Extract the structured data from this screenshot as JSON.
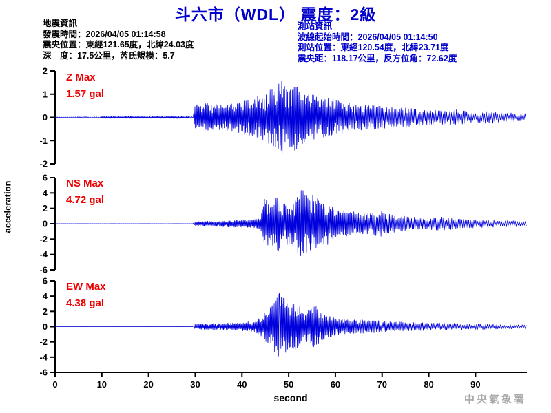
{
  "title": "斗六市（WDL） 震度：2級",
  "earthquake_info": {
    "heading": "地震資訊",
    "lines": [
      "發震時間：2026/04/05 01:14:58",
      "震央位置：東經121.65度，北緯24.03度",
      "深　度：17.5公里，芮氏規模：5.7"
    ]
  },
  "station_info": {
    "heading": "測站資訊",
    "lines": [
      "波線起始時間：2026/04/05 01:14:50",
      "測站位置：東經120.54度，北緯23.71度",
      "震央距：118.17公里，反方位角：72.62度"
    ]
  },
  "watermark": "中央氣象署",
  "colors": {
    "trace": "#0000dd",
    "axis": "#000000",
    "title": "#0000cc",
    "station_info": "#0000cc",
    "annotation": "#ee0000",
    "watermark": "#a9a9a9"
  },
  "chart_data": {
    "type": "line",
    "subtype": "seismogram-3-component",
    "xlabel": "second",
    "ylabel": "acceleration",
    "xlim": [
      0,
      101
    ],
    "x_ticks": [
      0,
      10,
      20,
      30,
      40,
      50,
      60,
      70,
      80,
      90
    ],
    "grid": false,
    "traces": [
      {
        "name": "Z",
        "max_label": "Z Max",
        "max_value_label": "1.57 gal",
        "max_gal": 1.57,
        "ylim": [
          -2,
          2
        ],
        "y_ticks": [
          2,
          1,
          0,
          -1,
          -2
        ],
        "p_onset_s": 30,
        "peak_time_s": 48.5,
        "envelope": [
          [
            0,
            0.02
          ],
          [
            8,
            0.03
          ],
          [
            14,
            0.05
          ],
          [
            20,
            0.04
          ],
          [
            26,
            0.05
          ],
          [
            29.5,
            0.03
          ],
          [
            30,
            0.55
          ],
          [
            33,
            0.62
          ],
          [
            36,
            0.55
          ],
          [
            39,
            0.65
          ],
          [
            42,
            0.8
          ],
          [
            45,
            1.05
          ],
          [
            47,
            1.3
          ],
          [
            48.5,
            1.57
          ],
          [
            50,
            1.25
          ],
          [
            51.5,
            1.45
          ],
          [
            53,
            1.15
          ],
          [
            55,
            1.0
          ],
          [
            57,
            0.9
          ],
          [
            60,
            0.78
          ],
          [
            63,
            0.62
          ],
          [
            66,
            0.55
          ],
          [
            70,
            0.48
          ],
          [
            74,
            0.42
          ],
          [
            78,
            0.35
          ],
          [
            82,
            0.3
          ],
          [
            86,
            0.33
          ],
          [
            90,
            0.22
          ],
          [
            93,
            0.28
          ],
          [
            96,
            0.2
          ],
          [
            101,
            0.18
          ]
        ]
      },
      {
        "name": "NS",
        "max_label": "NS Max",
        "max_value_label": "4.72 gal",
        "max_gal": 4.72,
        "ylim": [
          -6,
          6
        ],
        "y_ticks": [
          6,
          4,
          2,
          0,
          -2,
          -4,
          -6
        ],
        "p_onset_s": 30,
        "peak_time_s": 53.2,
        "envelope": [
          [
            0,
            0.012
          ],
          [
            29.5,
            0.012
          ],
          [
            30,
            0.3
          ],
          [
            33,
            0.35
          ],
          [
            36,
            0.4
          ],
          [
            39,
            0.45
          ],
          [
            42,
            0.5
          ],
          [
            44,
            0.7
          ],
          [
            44.8,
            3.5
          ],
          [
            46,
            2.4
          ],
          [
            47.5,
            3.8
          ],
          [
            49,
            2.6
          ],
          [
            51,
            3.2
          ],
          [
            52.5,
            4.3
          ],
          [
            53.2,
            4.72
          ],
          [
            54,
            3.6
          ],
          [
            55.5,
            4.0
          ],
          [
            57,
            2.6
          ],
          [
            58.5,
            2.9
          ],
          [
            60,
            1.9
          ],
          [
            62,
            1.6
          ],
          [
            64,
            1.7
          ],
          [
            66,
            1.3
          ],
          [
            68,
            1.5
          ],
          [
            70,
            1.7
          ],
          [
            72,
            1.3
          ],
          [
            74,
            1.05
          ],
          [
            77,
            0.85
          ],
          [
            80,
            0.75
          ],
          [
            83,
            0.9
          ],
          [
            86,
            0.65
          ],
          [
            89,
            0.55
          ],
          [
            92,
            0.5
          ],
          [
            95,
            0.42
          ],
          [
            98,
            0.38
          ],
          [
            101,
            0.32
          ]
        ]
      },
      {
        "name": "EW",
        "max_label": "EW Max",
        "max_value_label": "4.38 gal",
        "max_gal": 4.38,
        "ylim": [
          -6,
          6
        ],
        "y_ticks": [
          6,
          4,
          2,
          0,
          -2,
          -4,
          -6
        ],
        "p_onset_s": 30,
        "peak_time_s": 48,
        "envelope": [
          [
            0,
            0.012
          ],
          [
            29.5,
            0.012
          ],
          [
            30,
            0.35
          ],
          [
            33,
            0.4
          ],
          [
            36,
            0.45
          ],
          [
            39,
            0.5
          ],
          [
            41,
            0.6
          ],
          [
            43,
            0.9
          ],
          [
            44.5,
            1.6
          ],
          [
            45.8,
            2.4
          ],
          [
            47,
            3.6
          ],
          [
            48,
            4.38
          ],
          [
            49,
            3.9
          ],
          [
            50,
            2.8
          ],
          [
            51.5,
            3.1
          ],
          [
            53,
            2.3
          ],
          [
            54.5,
            2.1
          ],
          [
            55.5,
            3.0
          ],
          [
            57,
            1.8
          ],
          [
            58.5,
            1.4
          ],
          [
            60,
            1.2
          ],
          [
            62,
            1.0
          ],
          [
            64,
            0.9
          ],
          [
            67,
            0.85
          ],
          [
            70,
            0.75
          ],
          [
            73,
            0.65
          ],
          [
            76,
            0.55
          ],
          [
            80,
            0.5
          ],
          [
            84,
            0.45
          ],
          [
            88,
            0.4
          ],
          [
            92,
            0.35
          ],
          [
            96,
            0.3
          ],
          [
            101,
            0.25
          ]
        ]
      }
    ]
  }
}
